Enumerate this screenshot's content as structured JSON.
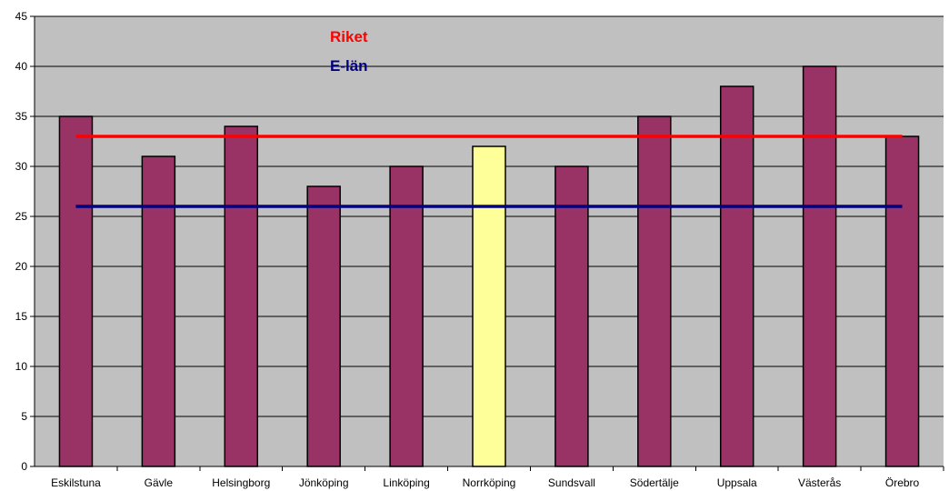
{
  "chart_data": {
    "type": "bar",
    "categories": [
      "Eskilstuna",
      "Gävle",
      "Helsingborg",
      "Jönköping",
      "Linköping",
      "Norrköping",
      "Sundsvall",
      "Södertälje",
      "Uppsala",
      "Västerås",
      "Örebro"
    ],
    "values": [
      35,
      31,
      34,
      28,
      30,
      32,
      30,
      35,
      38,
      40,
      33
    ],
    "highlight_category": "Norrköping",
    "reference_lines": [
      {
        "name": "Riket",
        "value": 33,
        "color": "#ff0000"
      },
      {
        "name": "E-län",
        "value": 26,
        "color": "#000080"
      }
    ],
    "ylim": [
      0,
      45
    ],
    "yticks": [
      "0",
      "5",
      "10",
      "15",
      "20",
      "25",
      "30",
      "35",
      "40",
      "45"
    ],
    "grid": true,
    "legend_position": "top-center",
    "colors": {
      "bar": "#993366",
      "highlight_bar": "#ffff99",
      "plot_background": "#c0c0c0",
      "gridline": "#000000",
      "bar_border": "#000000"
    }
  }
}
